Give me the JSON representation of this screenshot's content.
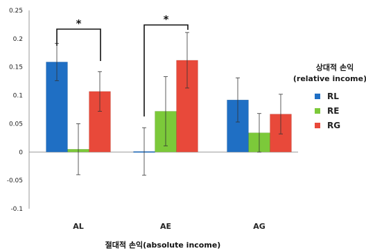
{
  "chart_data": {
    "type": "bar",
    "categories": [
      "AL",
      "AE",
      "AG"
    ],
    "series": [
      {
        "name": "RL",
        "color": "#1f6fc4",
        "values": [
          0.159,
          0.001,
          0.092
        ],
        "errors": [
          0.033,
          0.042,
          0.039
        ]
      },
      {
        "name": "RE",
        "color": "#7cc93a",
        "values": [
          0.005,
          0.072,
          0.034
        ],
        "errors": [
          0.045,
          0.061,
          0.034
        ]
      },
      {
        "name": "RG",
        "color": "#e8493a",
        "values": [
          0.107,
          0.162,
          0.067
        ],
        "errors": [
          0.035,
          0.049,
          0.035
        ]
      }
    ],
    "xlabel": "절대적 손익(absolute income)",
    "legend_title": [
      "상대적 손익",
      "(relative income)"
    ],
    "ylim": [
      -0.1,
      0.25
    ],
    "yticks": [
      0.25,
      0.2,
      0.15,
      0.1,
      0.05,
      0,
      -0.05,
      -0.1
    ],
    "ytick_labels": [
      "0.25",
      "0.2",
      "0.15",
      "0.1",
      "0.05",
      "0",
      "-0.05",
      "-0.1"
    ],
    "grid": false,
    "legend_position": "right",
    "significance": [
      {
        "category": "AL",
        "from_series": 0,
        "to_series": 2,
        "label": "*"
      },
      {
        "category": "AE",
        "from_series": 0,
        "to_series": 2,
        "label": "*"
      }
    ]
  }
}
